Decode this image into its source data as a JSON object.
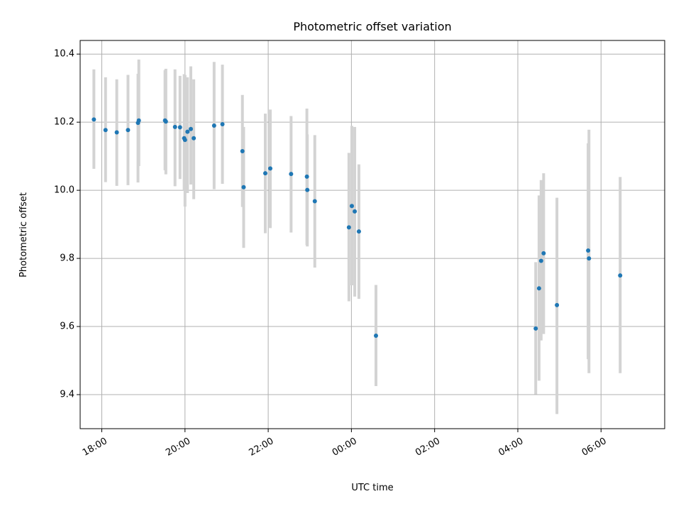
{
  "chart_data": {
    "type": "scatter",
    "title": "Photometric offset variation",
    "xlabel": "UTC time",
    "ylabel": "Photometric offset",
    "x_unit": "hours since 00:00 UTC",
    "xlim": [
      -6.52,
      7.53
    ],
    "ylim": [
      9.3,
      10.44
    ],
    "x_ticks": [
      {
        "value": -6,
        "label": "18:00"
      },
      {
        "value": -4,
        "label": "20:00"
      },
      {
        "value": -2,
        "label": "22:00"
      },
      {
        "value": 0,
        "label": "00:00"
      },
      {
        "value": 2,
        "label": "02:00"
      },
      {
        "value": 4,
        "label": "04:00"
      },
      {
        "value": 6,
        "label": "06:00"
      }
    ],
    "y_ticks": [
      {
        "value": 9.4,
        "label": "9.4"
      },
      {
        "value": 9.6,
        "label": "9.6"
      },
      {
        "value": 9.8,
        "label": "9.8"
      },
      {
        "value": 10.0,
        "label": "10.0"
      },
      {
        "value": 10.2,
        "label": "10.2"
      },
      {
        "value": 10.4,
        "label": "10.4"
      }
    ],
    "grid": true,
    "colors": {
      "point": "#1f77b4",
      "errorbar": "#d3d3d3"
    },
    "points": [
      {
        "x": -6.19,
        "y": 10.208,
        "lo": 10.063,
        "hi": 10.355
      },
      {
        "x": -5.91,
        "y": 10.177,
        "lo": 10.024,
        "hi": 10.332
      },
      {
        "x": -5.64,
        "y": 10.17,
        "lo": 10.013,
        "hi": 10.326
      },
      {
        "x": -5.37,
        "y": 10.177,
        "lo": 10.015,
        "hi": 10.339
      },
      {
        "x": -5.13,
        "y": 10.198,
        "lo": 10.023,
        "hi": 10.342
      },
      {
        "x": -5.11,
        "y": 10.205,
        "lo": 10.071,
        "hi": 10.384
      },
      {
        "x": -4.48,
        "y": 10.205,
        "lo": 10.059,
        "hi": 10.353
      },
      {
        "x": -4.46,
        "y": 10.202,
        "lo": 10.047,
        "hi": 10.357
      },
      {
        "x": -4.24,
        "y": 10.186,
        "lo": 10.012,
        "hi": 10.355
      },
      {
        "x": -4.12,
        "y": 10.185,
        "lo": 10.033,
        "hi": 10.336
      },
      {
        "x": -4.02,
        "y": 10.153,
        "lo": 10.0,
        "hi": 10.341
      },
      {
        "x": -4.0,
        "y": 10.148,
        "lo": 9.952,
        "hi": 10.339
      },
      {
        "x": -3.94,
        "y": 10.172,
        "lo": 9.992,
        "hi": 10.332
      },
      {
        "x": -3.86,
        "y": 10.18,
        "lo": 10.017,
        "hi": 10.364
      },
      {
        "x": -3.79,
        "y": 10.153,
        "lo": 9.974,
        "hi": 10.326
      },
      {
        "x": -3.3,
        "y": 10.19,
        "lo": 10.003,
        "hi": 10.377
      },
      {
        "x": -3.1,
        "y": 10.194,
        "lo": 10.019,
        "hi": 10.369
      },
      {
        "x": -2.62,
        "y": 10.115,
        "lo": 9.951,
        "hi": 10.28
      },
      {
        "x": -2.59,
        "y": 10.009,
        "lo": 9.831,
        "hi": 10.186
      },
      {
        "x": -2.07,
        "y": 10.05,
        "lo": 9.874,
        "hi": 10.225
      },
      {
        "x": -1.95,
        "y": 10.064,
        "lo": 9.889,
        "hi": 10.237
      },
      {
        "x": -1.45,
        "y": 10.048,
        "lo": 9.876,
        "hi": 10.218
      },
      {
        "x": -1.07,
        "y": 10.04,
        "lo": 9.839,
        "hi": 10.24
      },
      {
        "x": -1.06,
        "y": 10.001,
        "lo": 9.835,
        "hi": 10.164
      },
      {
        "x": -0.88,
        "y": 9.968,
        "lo": 9.773,
        "hi": 10.162
      },
      {
        "x": -0.06,
        "y": 9.891,
        "lo": 9.674,
        "hi": 10.11
      },
      {
        "x": 0.01,
        "y": 9.954,
        "lo": 9.721,
        "hi": 10.189
      },
      {
        "x": 0.08,
        "y": 9.938,
        "lo": 9.688,
        "hi": 10.186
      },
      {
        "x": 0.18,
        "y": 9.879,
        "lo": 9.681,
        "hi": 10.076
      },
      {
        "x": 0.59,
        "y": 9.573,
        "lo": 9.425,
        "hi": 9.722
      },
      {
        "x": 4.43,
        "y": 9.594,
        "lo": 9.401,
        "hi": 9.789
      },
      {
        "x": 4.51,
        "y": 9.712,
        "lo": 9.441,
        "hi": 9.985
      },
      {
        "x": 4.56,
        "y": 9.793,
        "lo": 9.559,
        "hi": 10.03
      },
      {
        "x": 4.62,
        "y": 9.815,
        "lo": 9.578,
        "hi": 10.05
      },
      {
        "x": 4.94,
        "y": 9.663,
        "lo": 9.343,
        "hi": 9.978
      },
      {
        "x": 5.69,
        "y": 9.823,
        "lo": 9.504,
        "hi": 10.138
      },
      {
        "x": 5.71,
        "y": 9.8,
        "lo": 9.463,
        "hi": 10.178
      },
      {
        "x": 6.46,
        "y": 9.75,
        "lo": 9.463,
        "hi": 10.039
      }
    ]
  }
}
